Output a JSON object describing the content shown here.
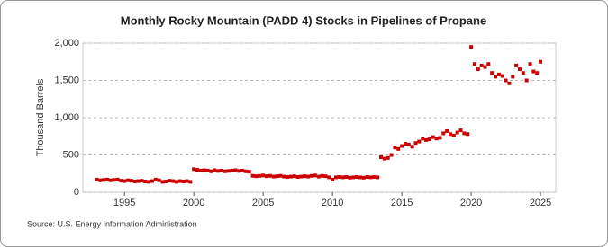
{
  "chart_data": {
    "type": "scatter",
    "title": "Monthly Rocky Mountain (PADD 4) Stocks in Pipelines of Propane",
    "y_label": "Thousand Barrels",
    "source": "Source: U.S. Energy Information Administration",
    "color": "#cc0000",
    "grid": true,
    "xlim": [
      1992,
      2026.1
    ],
    "xticks": [
      1995,
      2000,
      2005,
      2010,
      2015,
      2020,
      2025
    ],
    "ylim": [
      0,
      2000
    ],
    "yticks": [
      0,
      500,
      {
        "value": 1000,
        "label": "1,000"
      },
      {
        "value": 1500,
        "label": "1,500"
      },
      {
        "value": 2000,
        "label": "2,000"
      }
    ],
    "x": [
      1993,
      1993.25,
      1993.5,
      1993.75,
      1994,
      1994.25,
      1994.5,
      1994.75,
      1995,
      1995.25,
      1995.5,
      1995.75,
      1996,
      1996.25,
      1996.5,
      1996.75,
      1997,
      1997.25,
      1997.5,
      1997.75,
      1998,
      1998.25,
      1998.5,
      1998.75,
      1999,
      1999.25,
      1999.5,
      1999.75,
      2000,
      2000.25,
      2000.5,
      2000.75,
      2001,
      2001.25,
      2001.5,
      2001.75,
      2002,
      2002.25,
      2002.5,
      2002.75,
      2003,
      2003.25,
      2003.5,
      2003.75,
      2004,
      2004.25,
      2004.5,
      2004.75,
      2005,
      2005.25,
      2005.5,
      2005.75,
      2006,
      2006.25,
      2006.5,
      2006.75,
      2007,
      2007.25,
      2007.5,
      2007.75,
      2008,
      2008.25,
      2008.5,
      2008.75,
      2009,
      2009.25,
      2009.5,
      2009.75,
      2010,
      2010.25,
      2010.5,
      2010.75,
      2011,
      2011.25,
      2011.5,
      2011.75,
      2012,
      2012.25,
      2012.5,
      2012.75,
      2013,
      2013.25,
      2013.5,
      2013.75,
      2014,
      2014.25,
      2014.5,
      2014.75,
      2015,
      2015.25,
      2015.5,
      2015.75,
      2016,
      2016.25,
      2016.5,
      2016.75,
      2017,
      2017.25,
      2017.5,
      2017.75,
      2018,
      2018.25,
      2018.5,
      2018.75,
      2019,
      2019.25,
      2019.5,
      2019.75,
      2020,
      2020.25,
      2020.5,
      2020.75,
      2021,
      2021.25,
      2021.5,
      2021.75,
      2022,
      2022.25,
      2022.5,
      2022.75,
      2023,
      2023.25,
      2023.5,
      2023.75,
      2024,
      2024.25,
      2024.5,
      2024.75,
      2025
    ],
    "values": [
      170,
      160,
      165,
      170,
      160,
      165,
      170,
      155,
      150,
      160,
      155,
      145,
      150,
      155,
      145,
      140,
      150,
      170,
      160,
      140,
      145,
      155,
      150,
      140,
      150,
      145,
      150,
      140,
      310,
      300,
      290,
      295,
      290,
      280,
      295,
      285,
      290,
      280,
      285,
      290,
      295,
      285,
      290,
      280,
      275,
      220,
      215,
      220,
      225,
      215,
      220,
      210,
      215,
      220,
      210,
      205,
      210,
      215,
      205,
      210,
      215,
      210,
      220,
      225,
      210,
      220,
      215,
      200,
      170,
      200,
      205,
      200,
      205,
      195,
      200,
      205,
      200,
      195,
      205,
      200,
      205,
      200,
      470,
      450,
      460,
      500,
      600,
      580,
      620,
      650,
      640,
      610,
      660,
      680,
      720,
      700,
      710,
      740,
      720,
      730,
      790,
      820,
      780,
      760,
      800,
      830,
      790,
      780,
      1950,
      1720,
      1650,
      1700,
      1680,
      1720,
      1600,
      1550,
      1580,
      1560,
      1500,
      1460,
      1550,
      1700,
      1650,
      1600,
      1500,
      1720,
      1620,
      1600,
      1750
    ]
  }
}
